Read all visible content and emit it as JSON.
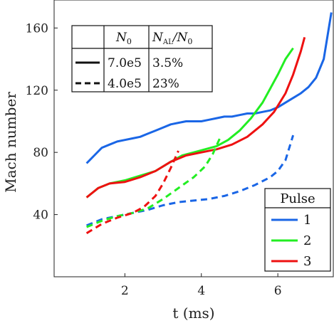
{
  "chart_data": {
    "type": "line",
    "xlabel": "t (ms)",
    "ylabel": "Mach number",
    "xlim": [
      0.15,
      7.45
    ],
    "ylim": [
      0,
      178
    ],
    "xticks": [
      2,
      4,
      6
    ],
    "yticks": [
      40,
      80,
      120,
      160
    ],
    "grid": false,
    "colors": {
      "1": "#1a66e6",
      "2": "#22ee22",
      "3": "#ee1111"
    },
    "series": [
      {
        "pulse": "1",
        "style": "solid",
        "color": "#1a66e6",
        "x": [
          1.0,
          1.2,
          1.4,
          1.6,
          1.8,
          2.0,
          2.2,
          2.4,
          2.6,
          2.8,
          3.0,
          3.2,
          3.4,
          3.6,
          3.8,
          4.0,
          4.2,
          4.4,
          4.6,
          4.8,
          5.0,
          5.2,
          5.4,
          5.6,
          5.8,
          6.0,
          6.2,
          6.4,
          6.6,
          6.8,
          7.0,
          7.2,
          7.4
        ],
        "y": [
          73,
          78,
          83,
          85,
          87,
          88,
          89,
          90,
          92,
          94,
          96,
          98,
          99,
          100,
          100,
          100,
          101,
          102,
          103,
          103,
          104,
          105,
          105,
          106,
          107,
          109,
          112,
          115,
          118,
          122,
          128,
          140,
          170
        ]
      },
      {
        "pulse": "2",
        "style": "solid",
        "color": "#22ee22",
        "x": [
          1.0,
          1.3,
          1.6,
          2.0,
          2.4,
          2.8,
          3.2,
          3.5,
          3.8,
          4.1,
          4.4,
          4.7,
          5.0,
          5.3,
          5.6,
          5.8,
          6.0,
          6.2,
          6.4
        ],
        "y": [
          51,
          57,
          60,
          62,
          65,
          68,
          74,
          78,
          80,
          82,
          84,
          88,
          94,
          102,
          112,
          121,
          130,
          140,
          147
        ]
      },
      {
        "pulse": "3",
        "style": "solid",
        "color": "#ee1111",
        "x": [
          1.0,
          1.3,
          1.6,
          2.0,
          2.4,
          2.8,
          3.2,
          3.6,
          4.0,
          4.4,
          4.8,
          5.2,
          5.6,
          5.9,
          6.2,
          6.4,
          6.6,
          6.7
        ],
        "y": [
          51,
          57,
          60,
          61,
          64,
          68,
          74,
          78,
          80,
          82,
          85,
          90,
          98,
          106,
          118,
          130,
          145,
          154
        ]
      },
      {
        "pulse": "1",
        "style": "dashed",
        "color": "#1a66e6",
        "x": [
          1.0,
          1.4,
          1.8,
          2.2,
          2.6,
          3.0,
          3.4,
          3.8,
          4.2,
          4.6,
          5.0,
          5.4,
          5.8,
          6.0,
          6.2,
          6.4
        ],
        "y": [
          33,
          37,
          39,
          41,
          43,
          46,
          48,
          49,
          50,
          52,
          55,
          59,
          64,
          68,
          75,
          91
        ]
      },
      {
        "pulse": "2",
        "style": "dashed",
        "color": "#22ee22",
        "x": [
          1.0,
          1.4,
          1.8,
          2.2,
          2.6,
          3.0,
          3.4,
          3.8,
          4.1,
          4.3,
          4.5
        ],
        "y": [
          32,
          36,
          39,
          41,
          44,
          50,
          57,
          64,
          71,
          79,
          90
        ]
      },
      {
        "pulse": "3",
        "style": "dashed",
        "color": "#ee1111",
        "x": [
          1.0,
          1.4,
          1.8,
          2.2,
          2.5,
          2.8,
          3.0,
          3.2,
          3.4
        ],
        "y": [
          28,
          34,
          38,
          41,
          45,
          52,
          60,
          70,
          81
        ]
      }
    ]
  },
  "table": {
    "headers": [
      "",
      "N0",
      "NAL/N0"
    ],
    "header_n0": {
      "main": "N",
      "sub": "0"
    },
    "header_ratio": {
      "main": "N",
      "sub": "AL",
      "rest": "/N",
      "sub2": "0"
    },
    "rows": [
      {
        "style": "solid",
        "n0": "7.0e5",
        "ratio": "3.5%"
      },
      {
        "style": "dashed",
        "n0": "4.0e5",
        "ratio": "23%"
      }
    ]
  },
  "legend": {
    "title": "Pulse",
    "placement": "lower-right",
    "entries": [
      {
        "label": "1",
        "color": "#1a66e6"
      },
      {
        "label": "2",
        "color": "#22ee22"
      },
      {
        "label": "3",
        "color": "#ee1111"
      }
    ]
  }
}
